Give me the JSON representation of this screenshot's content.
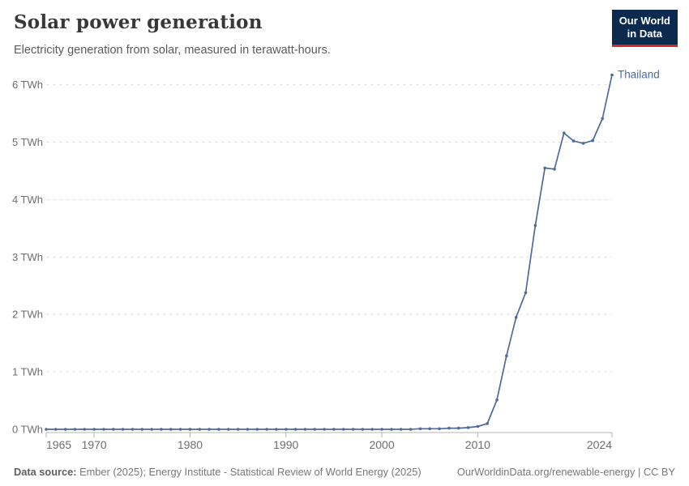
{
  "header": {
    "title": "Solar power generation",
    "subtitle": "Electricity generation from solar, measured in terawatt-hours.",
    "logo": {
      "line1": "Our World",
      "line2": "in Data",
      "bg_color": "#0b2a4e",
      "accent_color": "#cc2b26"
    }
  },
  "chart_data": {
    "type": "line",
    "title": "Solar power generation",
    "xlabel": "",
    "ylabel": "",
    "unit": "TWh",
    "xlim": [
      1965,
      2024
    ],
    "ylim": [
      0,
      6.3
    ],
    "grid": "dashed-horizontal",
    "legend_position": "end-of-line",
    "yticks": [
      0,
      1,
      2,
      3,
      4,
      5,
      6
    ],
    "ytick_labels": [
      "0 TWh",
      "1 TWh",
      "2 TWh",
      "3 TWh",
      "4 TWh",
      "5 TWh",
      "6 TWh"
    ],
    "x_ticks": [
      1965,
      1970,
      1980,
      1990,
      2000,
      2010,
      2024
    ],
    "axis_color": "#b3b3b3",
    "grid_color": "#e2e2e2",
    "tick_label_color": "#6e6e6e",
    "series": [
      {
        "name": "Thailand",
        "color": "#4c6a9c",
        "x": [
          1965,
          1966,
          1967,
          1968,
          1969,
          1970,
          1971,
          1972,
          1973,
          1974,
          1975,
          1976,
          1977,
          1978,
          1979,
          1980,
          1981,
          1982,
          1983,
          1984,
          1985,
          1986,
          1987,
          1988,
          1989,
          1990,
          1991,
          1992,
          1993,
          1994,
          1995,
          1996,
          1997,
          1998,
          1999,
          2000,
          2001,
          2002,
          2003,
          2004,
          2005,
          2006,
          2007,
          2008,
          2009,
          2010,
          2011,
          2012,
          2013,
          2014,
          2015,
          2016,
          2017,
          2018,
          2019,
          2020,
          2021,
          2022,
          2023,
          2024
        ],
        "values": [
          0,
          0,
          0,
          0,
          0,
          0,
          0,
          0,
          0,
          0,
          0,
          0,
          0,
          0,
          0,
          0,
          0,
          0,
          0,
          0,
          0,
          0,
          0,
          0,
          0,
          0,
          0,
          0,
          0,
          0,
          0,
          0,
          0,
          0,
          0,
          0,
          0,
          0,
          0,
          0.01,
          0.01,
          0.01,
          0.02,
          0.02,
          0.03,
          0.05,
          0.1,
          0.51,
          1.28,
          1.95,
          2.38,
          3.55,
          4.55,
          4.53,
          5.16,
          5.02,
          4.98,
          5.03,
          5.41,
          6.17
        ]
      }
    ]
  },
  "footer": {
    "source_label": "Data source:",
    "source_text": "Ember (2025); Energy Institute - Statistical Review of World Energy (2025)",
    "link_text": "OurWorldinData.org/renewable-energy | CC BY"
  }
}
